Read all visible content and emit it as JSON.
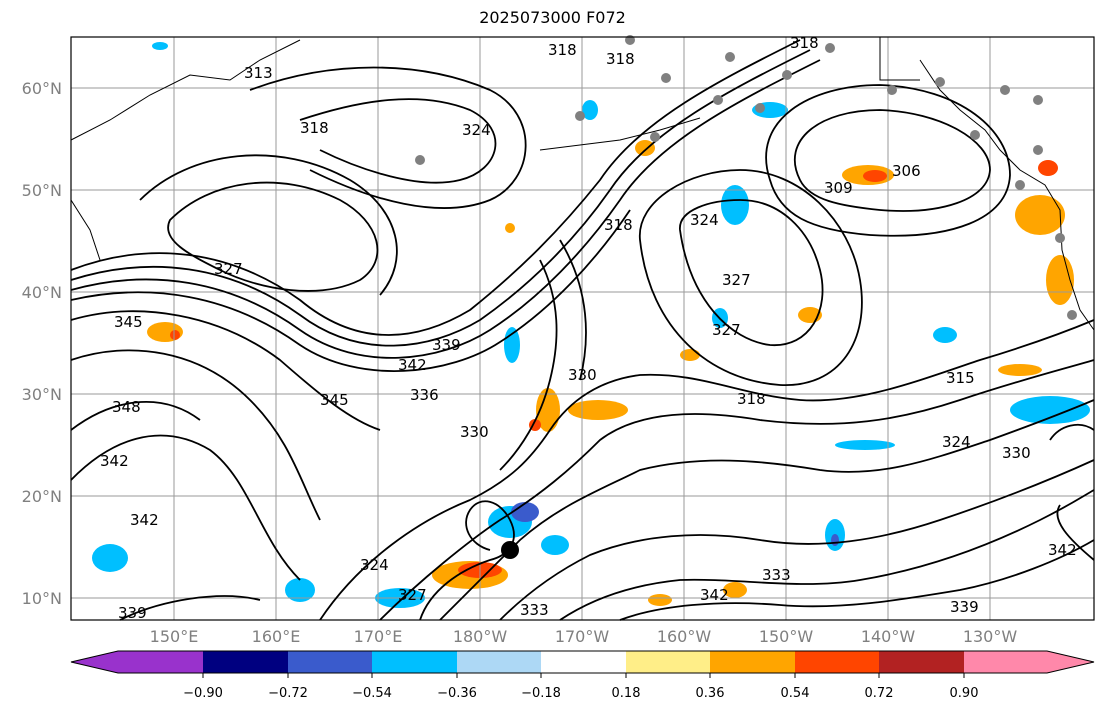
{
  "title": "2025073000 F072",
  "map": {
    "lon_labels": [
      "150°E",
      "160°E",
      "170°E",
      "180°W",
      "170°W",
      "160°W",
      "150°W",
      "140°W",
      "130°W"
    ],
    "lat_labels": [
      "60°N",
      "50°N",
      "40°N",
      "30°N",
      "20°N",
      "10°N"
    ],
    "contour_labels": [
      "318",
      "318",
      "318",
      "313",
      "318",
      "324",
      "306",
      "309",
      "327",
      "318",
      "324",
      "327",
      "327",
      "345",
      "342",
      "339",
      "336",
      "345",
      "330",
      "318",
      "315",
      "348",
      "330",
      "342",
      "324",
      "330",
      "342",
      "342",
      "324",
      "327",
      "333",
      "333",
      "342",
      "339",
      "339"
    ]
  },
  "colorbar": {
    "tick_labels": [
      "−0.90",
      "−0.72",
      "−0.54",
      "−0.36",
      "−0.18",
      "0.18",
      "0.36",
      "0.54",
      "0.72",
      "0.90"
    ],
    "colors": [
      "#9932cc",
      "#000080",
      "#3a5bcc",
      "#00bfff",
      "#add8f5",
      "#ffffff",
      "#ffee88",
      "#ffa500",
      "#ff4500",
      "#b22222",
      "#ff88aa",
      "#ff88aa"
    ]
  }
}
